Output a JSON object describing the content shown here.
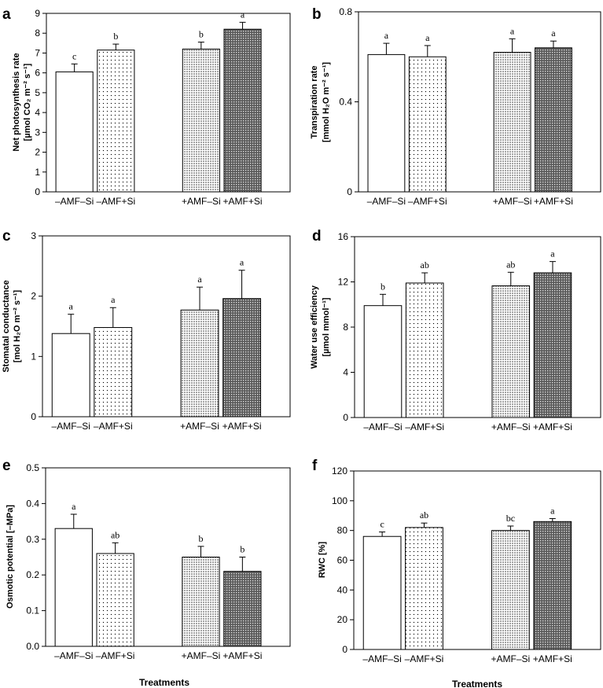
{
  "figure": {
    "x_axis_title": "Treatments"
  },
  "fill_styles": {
    "-AMF-Si": "white",
    "-AMF+Si": "sparse-dots",
    "+AMF-Si": "dense-dots",
    "+AMF+Si": "dark-mesh"
  },
  "colors": {
    "axis": "#000000",
    "bar_edge": "#000000",
    "background": "#ffffff"
  },
  "chart_data": [
    {
      "panel": "a",
      "type": "bar",
      "title": "",
      "ylabel_line1": "Net photosynthesis rate",
      "ylabel_line2": "[µmol CO₂ m⁻² s⁻¹]",
      "xlabel": "",
      "categories": [
        "–AMF–Si",
        "–AMF+Si",
        "+AMF–Si",
        "+AMF+Si"
      ],
      "values": [
        6.05,
        7.15,
        7.2,
        8.2
      ],
      "errors": [
        0.4,
        0.3,
        0.35,
        0.35
      ],
      "letters": [
        "c",
        "b",
        "b",
        "a"
      ],
      "ylim": [
        0,
        9
      ],
      "yticks": [
        0,
        1,
        2,
        3,
        4,
        5,
        6,
        7,
        8,
        9
      ],
      "tick_labels": [
        "0",
        "1",
        "2",
        "3",
        "4",
        "5",
        "6",
        "7",
        "8",
        "9"
      ]
    },
    {
      "panel": "b",
      "type": "bar",
      "title": "",
      "ylabel_line1": "Transpiration rate",
      "ylabel_line2": "[mmol H₂O m⁻² s⁻¹]",
      "xlabel": "",
      "categories": [
        "–AMF–Si",
        "–AMF+Si",
        "+AMF–Si",
        "+AMF+Si"
      ],
      "values": [
        0.61,
        0.6,
        0.62,
        0.64
      ],
      "errors": [
        0.05,
        0.05,
        0.06,
        0.03
      ],
      "letters": [
        "a",
        "a",
        "a",
        "a"
      ],
      "ylim": [
        0,
        0.8
      ],
      "yticks": [
        0,
        0.4,
        0.8
      ],
      "tick_labels": [
        "0",
        "0.4",
        "0.8"
      ]
    },
    {
      "panel": "c",
      "type": "bar",
      "title": "",
      "ylabel_line1": "Stomatal conductance",
      "ylabel_line2": "[mol H₂O m⁻² s⁻¹]",
      "xlabel": "",
      "categories": [
        "–AMF–Si",
        "–AMF+Si",
        "+AMF–Si",
        "+AMF+Si"
      ],
      "values": [
        1.38,
        1.48,
        1.77,
        1.96
      ],
      "errors": [
        0.32,
        0.33,
        0.38,
        0.47
      ],
      "letters": [
        "a",
        "a",
        "a",
        "a"
      ],
      "ylim": [
        0,
        3
      ],
      "yticks": [
        0,
        1,
        2,
        3
      ],
      "tick_labels": [
        "0",
        "1",
        "2",
        "3"
      ]
    },
    {
      "panel": "d",
      "type": "bar",
      "title": "",
      "ylabel_line1": "Water use efficiency",
      "ylabel_line2": "[µmol mmol⁻¹]",
      "xlabel": "",
      "categories": [
        "–AMF–Si",
        "–AMF+Si",
        "+AMF–Si",
        "+AMF+Si"
      ],
      "values": [
        9.9,
        11.9,
        11.65,
        12.8
      ],
      "errors": [
        1.0,
        0.9,
        1.2,
        1.0
      ],
      "letters": [
        "b",
        "ab",
        "ab",
        "a"
      ],
      "ylim": [
        0,
        16
      ],
      "yticks": [
        0,
        4,
        8,
        12,
        16
      ],
      "tick_labels": [
        "0",
        "4",
        "8",
        "12",
        "16"
      ]
    },
    {
      "panel": "e",
      "type": "bar",
      "title": "",
      "ylabel_line1": "Osmotic potential [–MPa]",
      "ylabel_line2": "",
      "xlabel": "Treatments",
      "categories": [
        "–AMF–Si",
        "–AMF+Si",
        "+AMF–Si",
        "+AMF+Si"
      ],
      "values": [
        0.33,
        0.26,
        0.25,
        0.21
      ],
      "errors": [
        0.04,
        0.03,
        0.03,
        0.04
      ],
      "letters": [
        "a",
        "ab",
        "b",
        "b"
      ],
      "ylim": [
        0,
        0.5
      ],
      "yticks": [
        0,
        0.1,
        0.2,
        0.3,
        0.4,
        0.5
      ],
      "tick_labels": [
        "0.0",
        "0.1",
        "0.2",
        "0.3",
        "0.4",
        "0.5"
      ]
    },
    {
      "panel": "f",
      "type": "bar",
      "title": "",
      "ylabel_line1": "RWC [%]",
      "ylabel_line2": "",
      "xlabel": "Treatments",
      "categories": [
        "–AMF–Si",
        "–AMF+Si",
        "+AMF–Si",
        "+AMF+Si"
      ],
      "values": [
        76,
        82,
        80,
        86
      ],
      "errors": [
        3,
        3,
        3,
        2
      ],
      "letters": [
        "c",
        "ab",
        "bc",
        "a"
      ],
      "ylim": [
        0,
        120
      ],
      "yticks": [
        0,
        20,
        40,
        60,
        80,
        100,
        120
      ],
      "tick_labels": [
        "0",
        "20",
        "40",
        "60",
        "80",
        "100",
        "120"
      ]
    }
  ]
}
